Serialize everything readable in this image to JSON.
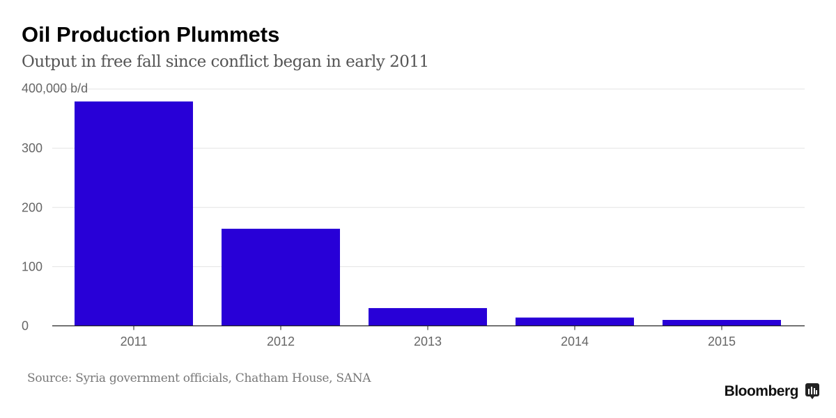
{
  "chart_data": {
    "type": "bar",
    "title": "Oil Production Plummets",
    "subtitle": "Output in free fall since conflict began in early 2011",
    "categories": [
      "2011",
      "2012",
      "2013",
      "2014",
      "2015"
    ],
    "values": [
      379,
      164,
      30,
      14,
      10
    ],
    "ylabel": "b/d (thousands)",
    "ylim": [
      0,
      400
    ],
    "yticks": [
      0,
      100,
      200,
      300,
      400
    ],
    "ytick_labels": [
      "0",
      "100",
      "200",
      "300",
      "400,000 b/d"
    ],
    "grid": true,
    "bar_color": "#2800d7",
    "source": "Source: Syria government officials, Chatham House, SANA"
  },
  "brand": "Bloomberg"
}
